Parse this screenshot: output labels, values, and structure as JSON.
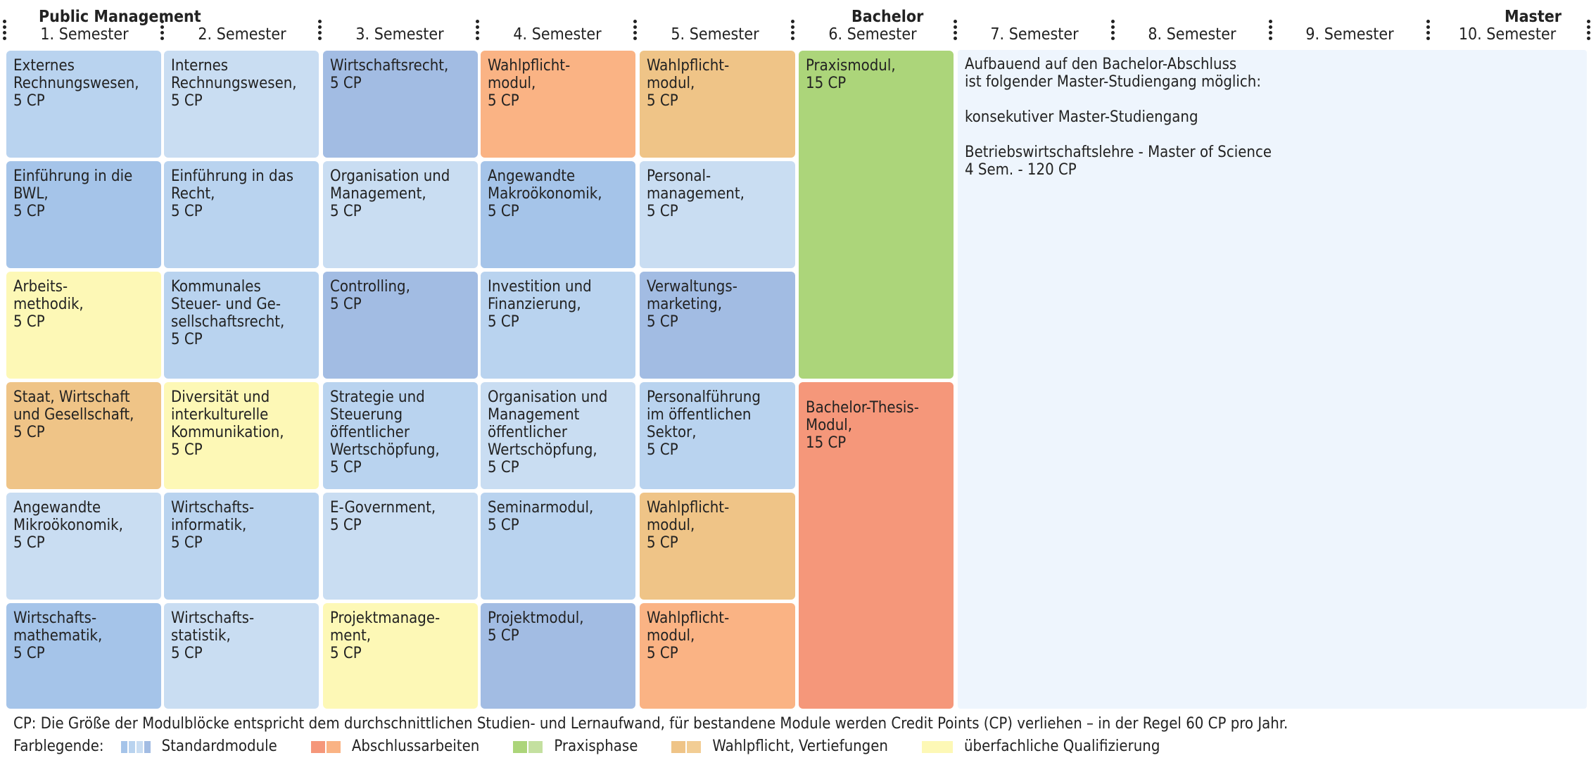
{
  "headers": {
    "program": "Public Management",
    "bachelor": "Bachelor",
    "master": "Master",
    "semesters": [
      "1. Semester",
      "2. Semester",
      "3. Semester",
      "4. Semester",
      "5. Semester",
      "6. Semester",
      "7. Semester",
      "8. Semester",
      "9. Semester",
      "10. Semester"
    ]
  },
  "colors": {
    "standard_1": "#b9d3ef",
    "standard_2": "#c9ddf2",
    "standard_3": "#a5c4e9",
    "standard_4": "#a2bce3",
    "abschluss_1": "#f5977a",
    "abschluss_2": "#fab384",
    "praxis_1": "#acd57a",
    "praxis_2": "#c4e0a0",
    "wahlpflicht_1": "#efc487",
    "wahlpflicht_2": "#f2cd94",
    "ueberfachlich": "#fdf8b6",
    "master_bg": "#eef5fd"
  },
  "modules": [
    [
      {
        "text": "Externes\nRechnungswesen,\n5 CP",
        "color": "standard_1"
      },
      {
        "text": "Einführung in die\nBWL,\n5 CP",
        "color": "standard_3"
      },
      {
        "text": "Arbeits-\nmethodik,\n5 CP",
        "color": "ueberfachlich"
      },
      {
        "text": "Staat, Wirtschaft\nund Gesellschaft,\n5 CP",
        "color": "wahlpflicht_1"
      },
      {
        "text": "Angewandte\nMikroökonomik,\n5 CP",
        "color": "standard_2"
      },
      {
        "text": "Wirtschafts-\nmathematik,\n5 CP",
        "color": "standard_3"
      }
    ],
    [
      {
        "text": "Internes\nRechnungswesen,\n5 CP",
        "color": "standard_2"
      },
      {
        "text": "Einführung in das\nRecht,\n5 CP",
        "color": "standard_1"
      },
      {
        "text": "Kommunales\nSteuer- und Ge-\nsellschaftsrecht,\n5 CP",
        "color": "standard_1"
      },
      {
        "text": "Diversität und\ninterkulturelle\nKommunikation,\n5 CP",
        "color": "ueberfachlich"
      },
      {
        "text": "Wirtschafts-\ninformatik,\n5 CP",
        "color": "standard_1"
      },
      {
        "text": "Wirtschafts-\nstatistik,\n5 CP",
        "color": "standard_2"
      }
    ],
    [
      {
        "text": "Wirtschaftsrecht,\n5 CP",
        "color": "standard_4"
      },
      {
        "text": "Organisation und\nManagement,\n5 CP",
        "color": "standard_2"
      },
      {
        "text": "Controlling,\n5 CP",
        "color": "standard_4"
      },
      {
        "text": "Strategie und\nSteuerung\nöffentlicher\nWertschöpfung,\n5 CP",
        "color": "standard_1"
      },
      {
        "text": "E-Government,\n5 CP",
        "color": "standard_2"
      },
      {
        "text": "Projektmanage-\nment,\n5 CP",
        "color": "ueberfachlich"
      }
    ],
    [
      {
        "text": "Wahlpflicht-\nmodul,\n5 CP",
        "color": "abschluss_2"
      },
      {
        "text": "Angewandte\nMakroökonomik,\n5 CP",
        "color": "standard_3"
      },
      {
        "text": "Investition und\nFinanzierung,\n5 CP",
        "color": "standard_1"
      },
      {
        "text": "Organisation und\nManagement\nöffentlicher\nWertschöpfung,\n5 CP",
        "color": "standard_2"
      },
      {
        "text": "Seminarmodul,\n5 CP",
        "color": "standard_1"
      },
      {
        "text": "Projektmodul,\n5 CP",
        "color": "standard_4"
      }
    ],
    [
      {
        "text": "Wahlpflicht-\nmodul,\n5 CP",
        "color": "wahlpflicht_1"
      },
      {
        "text": "Personal-\nmanagement,\n5 CP",
        "color": "standard_2"
      },
      {
        "text": "Verwaltungs-\nmarketing,\n5 CP",
        "color": "standard_4"
      },
      {
        "text": "Personalführung\nim öffentlichen\nSektor,\n5 CP",
        "color": "standard_1"
      },
      {
        "text": "Wahlpflicht-\nmodul,\n5 CP",
        "color": "wahlpflicht_1"
      },
      {
        "text": "Wahlpflicht-\nmodul,\n5 CP",
        "color": "abschluss_2"
      }
    ],
    [
      {
        "text": "Praxismodul,\n15 CP",
        "color": "praxis_1"
      },
      {
        "text": "Bachelor-Thesis-\nModul,\n15 CP",
        "color": "abschluss_1"
      }
    ]
  ],
  "master_box": {
    "lines": [
      "Aufbauend auf den Bachelor-Abschluss",
      "ist folgender Master-Studiengang möglich:",
      "",
      "konsekutiver Master-Studiengang",
      "",
      "Betriebswirtschaftslehre - Master of Science",
      "4 Sem. - 120 CP"
    ]
  },
  "footnote": "CP: Die Größe der Modulblöcke entspricht dem durchschnittlichen Studien- und Lernaufwand, für bestandene Module werden Credit Points (CP) verliehen – in der Regel 60 CP pro Jahr.",
  "legend": {
    "title": "Farblegende:",
    "items": [
      {
        "label": "Standardmodule",
        "swatches": [
          "standard_3",
          "standard_1",
          "standard_2",
          "standard_4"
        ]
      },
      {
        "label": "Abschlussarbeiten",
        "swatches": [
          "abschluss_1",
          "abschluss_2"
        ]
      },
      {
        "label": "Praxisphase",
        "swatches": [
          "praxis_1",
          "praxis_2"
        ]
      },
      {
        "label": "Wahlpflicht, Vertiefungen",
        "swatches": [
          "wahlpflicht_1",
          "wahlpflicht_2"
        ]
      },
      {
        "label": "überfachliche Qualifizierung",
        "swatches": [
          "ueberfachlich"
        ]
      }
    ]
  }
}
